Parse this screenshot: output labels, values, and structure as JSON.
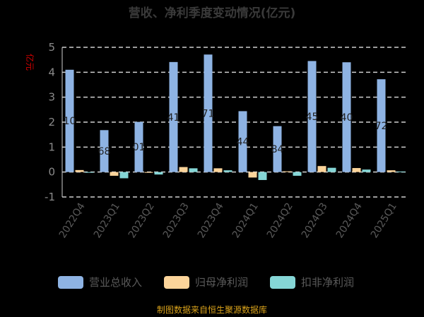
{
  "chart_data": {
    "type": "bar",
    "title": "营收、净利季度变动情况(亿元)",
    "ylabel": "亿元",
    "ylim": [
      -1,
      5
    ],
    "yticks": [
      -1,
      0,
      1,
      2,
      3,
      4,
      5
    ],
    "grid": true,
    "legend_position": "bottom",
    "categories": [
      "2022Q4",
      "2023Q1",
      "2023Q2",
      "2023Q3",
      "2023Q4",
      "2024Q1",
      "2024Q2",
      "2024Q3",
      "2024Q4",
      "2025Q1"
    ],
    "series": [
      {
        "name": "营业总收入",
        "color": "#8eb3e3",
        "values": [
          4.1,
          1.68,
          2.01,
          4.41,
          4.71,
          2.44,
          1.84,
          4.45,
          4.4,
          3.72
        ],
        "labels": [
          "10",
          "68",
          "01",
          "41",
          "71",
          "44",
          "84",
          "45",
          "40",
          "72"
        ]
      },
      {
        "name": "归母净利润",
        "color": "#fbd49a",
        "values": [
          0.08,
          -0.15,
          -0.03,
          0.2,
          0.15,
          -0.22,
          0.03,
          0.24,
          0.16,
          0.07
        ]
      },
      {
        "name": "扣非净利润",
        "color": "#85d6d6",
        "values": [
          -0.02,
          -0.25,
          -0.1,
          0.15,
          0.07,
          -0.32,
          -0.15,
          0.17,
          0.1,
          0.02
        ]
      }
    ]
  },
  "footer": {
    "source": "制图数据来自恒生聚源数据库"
  }
}
